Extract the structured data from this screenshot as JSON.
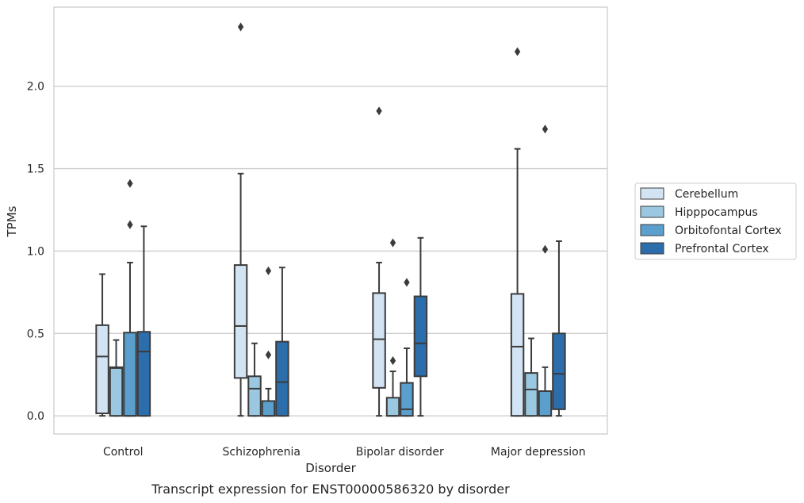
{
  "chart_data": {
    "type": "box",
    "title": "",
    "caption": "Transcript expression for ENST00000586320 by disorder",
    "xlabel": "Disorder",
    "ylabel": "TPMs",
    "ylim": [
      -0.11,
      2.48
    ],
    "yticks": [
      0.0,
      0.5,
      1.0,
      1.5,
      2.0
    ],
    "ytick_labels": [
      "0.0",
      "0.5",
      "1.0",
      "1.5",
      "2.0"
    ],
    "grid": "horizontal",
    "legend_position": "right",
    "categories": [
      "Control",
      "Schizophrenia",
      "Bipolar disorder",
      "Major depression"
    ],
    "series": [
      {
        "name": "Cerebellum",
        "color": "#d2e3f3",
        "boxes": [
          {
            "q1": 0.015,
            "median": 0.36,
            "q3": 0.55,
            "whisker_low": 0.0,
            "whisker_high": 0.86,
            "outliers": []
          },
          {
            "q1": 0.23,
            "median": 0.545,
            "q3": 0.915,
            "whisker_low": 0.0,
            "whisker_high": 1.47,
            "outliers": [
              2.36
            ]
          },
          {
            "q1": 0.17,
            "median": 0.465,
            "q3": 0.745,
            "whisker_low": 0.0,
            "whisker_high": 0.93,
            "outliers": [
              1.85
            ]
          },
          {
            "q1": 0.0,
            "median": 0.42,
            "q3": 0.74,
            "whisker_low": 0.0,
            "whisker_high": 1.62,
            "outliers": [
              2.21
            ]
          }
        ]
      },
      {
        "name": "Hipppocampus",
        "color": "#9ac8e0",
        "boxes": [
          {
            "q1": 0.0,
            "median": 0.29,
            "q3": 0.295,
            "whisker_low": 0.0,
            "whisker_high": 0.46,
            "outliers": []
          },
          {
            "q1": 0.0,
            "median": 0.165,
            "q3": 0.24,
            "whisker_low": 0.0,
            "whisker_high": 0.44,
            "outliers": []
          },
          {
            "q1": 0.0,
            "median": 0.0,
            "q3": 0.11,
            "whisker_low": 0.0,
            "whisker_high": 0.27,
            "outliers": [
              0.335,
              1.05
            ]
          },
          {
            "q1": 0.0,
            "median": 0.16,
            "q3": 0.26,
            "whisker_low": 0.0,
            "whisker_high": 0.47,
            "outliers": []
          }
        ]
      },
      {
        "name": "Orbitofontal Cortex",
        "color": "#5a9fcd",
        "boxes": [
          {
            "q1": 0.0,
            "median": 0.0,
            "q3": 0.505,
            "whisker_low": 0.0,
            "whisker_high": 0.93,
            "outliers": [
              1.16,
              1.41
            ]
          },
          {
            "q1": 0.0,
            "median": 0.0,
            "q3": 0.09,
            "whisker_low": 0.0,
            "whisker_high": 0.165,
            "outliers": [
              0.37,
              0.88
            ]
          },
          {
            "q1": 0.0,
            "median": 0.04,
            "q3": 0.2,
            "whisker_low": 0.0,
            "whisker_high": 0.41,
            "outliers": [
              0.81
            ]
          },
          {
            "q1": 0.0,
            "median": 0.0,
            "q3": 0.15,
            "whisker_low": 0.0,
            "whisker_high": 0.295,
            "outliers": [
              1.01,
              1.74
            ]
          }
        ]
      },
      {
        "name": "Prefrontal Cortex",
        "color": "#2c6eab",
        "boxes": [
          {
            "q1": 0.0,
            "median": 0.39,
            "q3": 0.51,
            "whisker_low": 0.0,
            "whisker_high": 1.15,
            "outliers": []
          },
          {
            "q1": 0.0,
            "median": 0.205,
            "q3": 0.45,
            "whisker_low": 0.0,
            "whisker_high": 0.9,
            "outliers": []
          },
          {
            "q1": 0.24,
            "median": 0.44,
            "q3": 0.725,
            "whisker_low": 0.0,
            "whisker_high": 1.08,
            "outliers": []
          },
          {
            "q1": 0.04,
            "median": 0.255,
            "q3": 0.5,
            "whisker_low": 0.0,
            "whisker_high": 1.06,
            "outliers": []
          }
        ]
      }
    ],
    "style": {
      "grid_color": "#cccccc",
      "frame_color": "#cccccc",
      "line_color": "#3b3b3b"
    }
  }
}
